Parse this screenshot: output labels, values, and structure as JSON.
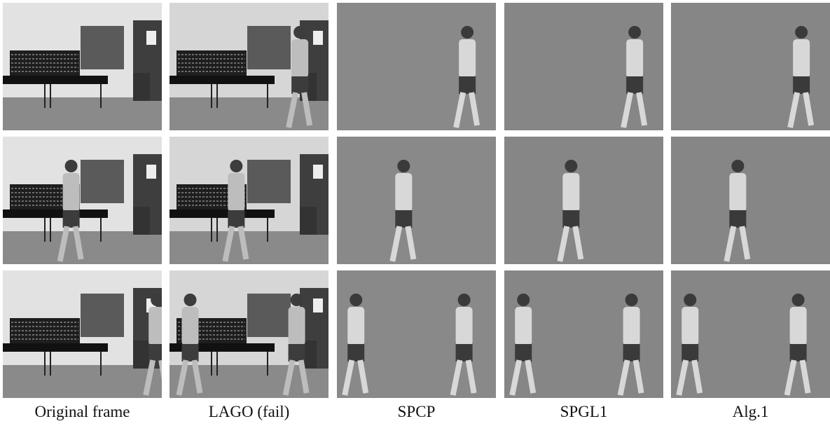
{
  "columns": [
    "Original frame",
    "LAGO (fail)",
    "SPCP",
    "SPGL1",
    "Alg.1"
  ]
}
